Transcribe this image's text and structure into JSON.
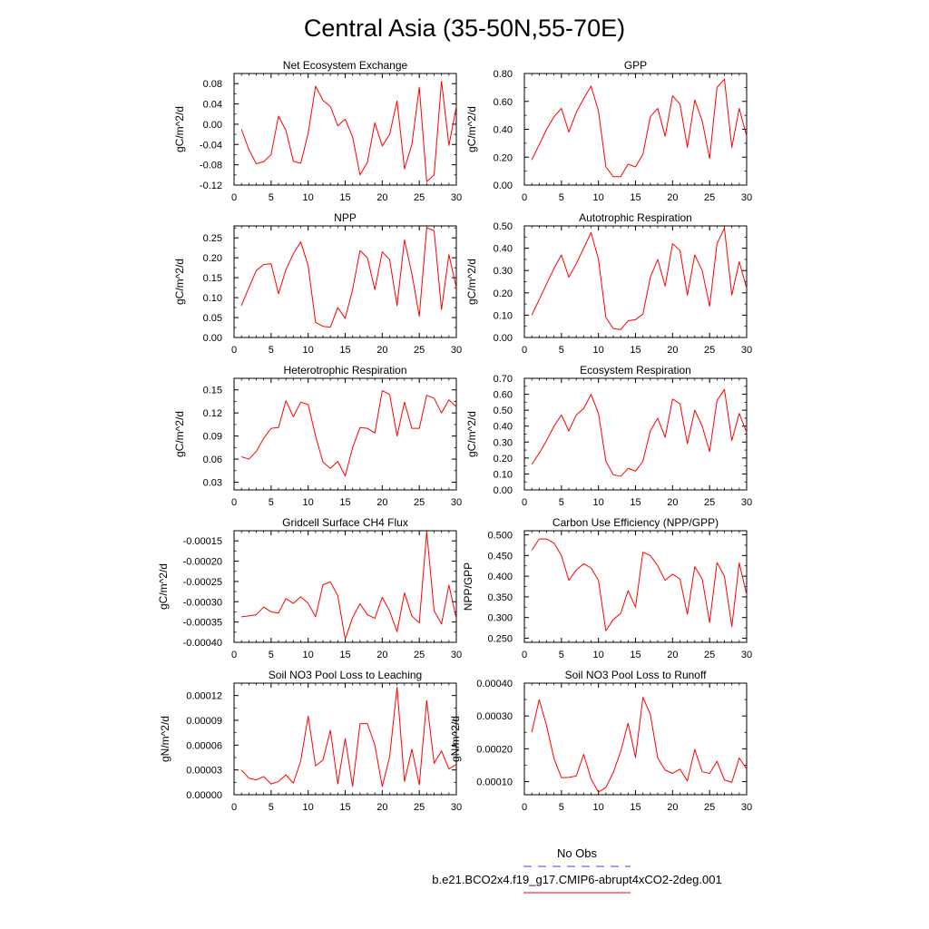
{
  "title": "Central Asia (35-50N,55-70E)",
  "x": [
    1,
    2,
    3,
    4,
    5,
    6,
    7,
    8,
    9,
    10,
    11,
    12,
    13,
    14,
    15,
    16,
    17,
    18,
    19,
    20,
    21,
    22,
    23,
    24,
    25,
    26,
    27,
    28,
    29,
    30
  ],
  "xticks": [
    "0",
    "5",
    "10",
    "15",
    "20",
    "25",
    "30"
  ],
  "legend": {
    "obs_label": "No Obs",
    "obs_color": "#4444cc",
    "case_label": "b.e21.BCO2x4.f19_g17.CMIP6-abrupt4xCO2-2deg.001",
    "case_color": "#ff0000"
  },
  "chart_data": [
    {
      "type": "line",
      "title": "Net Ecosystem Exchange",
      "ylabel": "gC/m^2/d",
      "xlim": [
        0,
        30
      ],
      "ylim": [
        -0.12,
        0.1
      ],
      "yticks": [
        -0.12,
        -0.08,
        -0.04,
        0.0,
        0.04,
        0.08
      ],
      "ytick_labels": [
        "-0.12",
        "-0.08",
        "-0.04",
        "0.00",
        "0.04",
        "0.08"
      ],
      "series": [
        {
          "color": "#ff0000",
          "values": [
            -0.01,
            -0.05,
            -0.078,
            -0.074,
            -0.06,
            0.016,
            -0.012,
            -0.073,
            -0.077,
            -0.018,
            0.075,
            0.047,
            0.035,
            -0.003,
            0.01,
            -0.025,
            -0.1,
            -0.075,
            0.003,
            -0.043,
            -0.02,
            0.046,
            -0.088,
            -0.04,
            0.073,
            -0.113,
            -0.1,
            0.085,
            -0.042,
            0.035
          ]
        }
      ]
    },
    {
      "type": "line",
      "title": "GPP",
      "ylabel": "gC/m^2/d",
      "xlim": [
        0,
        30
      ],
      "ylim": [
        0.0,
        0.8
      ],
      "yticks": [
        0.0,
        0.2,
        0.4,
        0.6,
        0.8
      ],
      "ytick_labels": [
        "0.00",
        "0.20",
        "0.40",
        "0.60",
        "0.80"
      ],
      "series": [
        {
          "color": "#ff0000",
          "values": [
            0.18,
            0.29,
            0.4,
            0.49,
            0.55,
            0.38,
            0.52,
            0.62,
            0.71,
            0.53,
            0.13,
            0.06,
            0.06,
            0.15,
            0.13,
            0.22,
            0.49,
            0.55,
            0.35,
            0.64,
            0.58,
            0.27,
            0.61,
            0.46,
            0.19,
            0.7,
            0.76,
            0.27,
            0.55,
            0.35
          ]
        }
      ]
    },
    {
      "type": "line",
      "title": "NPP",
      "ylabel": "gC/m^2/d",
      "xlim": [
        0,
        30
      ],
      "ylim": [
        0.0,
        0.28
      ],
      "yticks": [
        0.0,
        0.05,
        0.1,
        0.15,
        0.2,
        0.25
      ],
      "ytick_labels": [
        "0.00",
        "0.05",
        "0.10",
        "0.15",
        "0.20",
        "0.25"
      ],
      "series": [
        {
          "color": "#ff0000",
          "values": [
            0.08,
            0.125,
            0.168,
            0.183,
            0.185,
            0.11,
            0.17,
            0.21,
            0.24,
            0.18,
            0.038,
            0.028,
            0.026,
            0.075,
            0.048,
            0.12,
            0.218,
            0.2,
            0.12,
            0.215,
            0.195,
            0.08,
            0.245,
            0.16,
            0.053,
            0.275,
            0.268,
            0.07,
            0.208,
            0.125
          ]
        }
      ]
    },
    {
      "type": "line",
      "title": "Autotrophic Respiration",
      "ylabel": "gC/m^2/d",
      "xlim": [
        0,
        30
      ],
      "ylim": [
        0.0,
        0.5
      ],
      "yticks": [
        0.0,
        0.1,
        0.2,
        0.3,
        0.4,
        0.5
      ],
      "ytick_labels": [
        "0.00",
        "0.10",
        "0.20",
        "0.30",
        "0.40",
        "0.50"
      ],
      "series": [
        {
          "color": "#ff0000",
          "values": [
            0.1,
            0.17,
            0.24,
            0.31,
            0.37,
            0.27,
            0.33,
            0.4,
            0.47,
            0.35,
            0.09,
            0.04,
            0.035,
            0.075,
            0.08,
            0.105,
            0.27,
            0.35,
            0.23,
            0.42,
            0.39,
            0.19,
            0.37,
            0.3,
            0.14,
            0.42,
            0.49,
            0.19,
            0.34,
            0.22
          ]
        }
      ]
    },
    {
      "type": "line",
      "title": "Heterotrophic Respiration",
      "ylabel": "gC/m^2/d",
      "xlim": [
        0,
        30
      ],
      "ylim": [
        0.02,
        0.165
      ],
      "yticks": [
        0.03,
        0.06,
        0.09,
        0.12,
        0.15
      ],
      "ytick_labels": [
        "0.03",
        "0.06",
        "0.09",
        "0.12",
        "0.15"
      ],
      "series": [
        {
          "color": "#ff0000",
          "values": [
            0.063,
            0.06,
            0.07,
            0.087,
            0.1,
            0.101,
            0.136,
            0.115,
            0.134,
            0.131,
            0.09,
            0.056,
            0.048,
            0.057,
            0.038,
            0.075,
            0.101,
            0.1,
            0.094,
            0.149,
            0.144,
            0.09,
            0.134,
            0.1,
            0.1,
            0.143,
            0.139,
            0.12,
            0.137,
            0.128
          ]
        }
      ]
    },
    {
      "type": "line",
      "title": "Ecosystem Respiration",
      "ylabel": "gC/m^2/d",
      "xlim": [
        0,
        30
      ],
      "ylim": [
        0.0,
        0.7
      ],
      "yticks": [
        0.0,
        0.1,
        0.2,
        0.3,
        0.4,
        0.5,
        0.6,
        0.7
      ],
      "ytick_labels": [
        "0.00",
        "0.10",
        "0.20",
        "0.30",
        "0.40",
        "0.50",
        "0.60",
        "0.70"
      ],
      "series": [
        {
          "color": "#ff0000",
          "values": [
            0.16,
            0.23,
            0.31,
            0.4,
            0.47,
            0.37,
            0.47,
            0.51,
            0.6,
            0.48,
            0.18,
            0.095,
            0.085,
            0.135,
            0.118,
            0.18,
            0.37,
            0.45,
            0.33,
            0.57,
            0.54,
            0.29,
            0.5,
            0.4,
            0.24,
            0.56,
            0.63,
            0.31,
            0.48,
            0.36
          ]
        }
      ]
    },
    {
      "type": "line",
      "title": "Gridcell Surface CH4 Flux",
      "ylabel": "gC/m^2/d",
      "xlim": [
        0,
        30
      ],
      "ylim": [
        -0.0004,
        -0.000125
      ],
      "yticks": [
        -0.0004,
        -0.00035,
        -0.0003,
        -0.00025,
        -0.0002,
        -0.00015
      ],
      "ytick_labels": [
        "-0.00040",
        "-0.00035",
        "-0.00030",
        "-0.00025",
        "-0.00020",
        "-0.00015"
      ],
      "series": [
        {
          "color": "#ff0000",
          "values": [
            -0.000337,
            -0.000335,
            -0.000332,
            -0.000313,
            -0.000325,
            -0.000328,
            -0.000292,
            -0.000304,
            -0.000288,
            -0.000304,
            -0.000337,
            -0.000258,
            -0.000251,
            -0.000285,
            -0.000392,
            -0.000339,
            -0.000305,
            -0.000332,
            -0.000341,
            -0.000289,
            -0.000323,
            -0.000374,
            -0.000278,
            -0.000335,
            -0.000352,
            -0.000127,
            -0.000322,
            -0.000355,
            -0.000259,
            -0.000342
          ]
        }
      ]
    },
    {
      "type": "line",
      "title": "Carbon Use Efficiency (NPP/GPP)",
      "ylabel": "NPP/GPP",
      "xlim": [
        0,
        30
      ],
      "ylim": [
        0.24,
        0.51
      ],
      "yticks": [
        0.25,
        0.3,
        0.35,
        0.4,
        0.45,
        0.5
      ],
      "ytick_labels": [
        "0.250",
        "0.300",
        "0.350",
        "0.400",
        "0.450",
        "0.500"
      ],
      "series": [
        {
          "color": "#ff0000",
          "values": [
            0.463,
            0.49,
            0.49,
            0.48,
            0.45,
            0.39,
            0.415,
            0.43,
            0.42,
            0.39,
            0.268,
            0.295,
            0.31,
            0.365,
            0.325,
            0.458,
            0.45,
            0.425,
            0.39,
            0.405,
            0.393,
            0.308,
            0.423,
            0.393,
            0.288,
            0.433,
            0.4,
            0.278,
            0.432,
            0.355
          ]
        }
      ]
    },
    {
      "type": "line",
      "title": "Soil NO3 Pool Loss to Leaching",
      "ylabel": "gN/m^2/d",
      "xlim": [
        0,
        30
      ],
      "ylim": [
        0.0,
        0.000135
      ],
      "yticks": [
        0.0,
        3e-05,
        6e-05,
        9e-05,
        0.00012
      ],
      "ytick_labels": [
        "0.00000",
        "0.00003",
        "0.00006",
        "0.00009",
        "0.00012"
      ],
      "series": [
        {
          "color": "#ff0000",
          "values": [
            3e-05,
            2e-05,
            1.8e-05,
            2.2e-05,
            1.3e-05,
            1.6e-05,
            2.4e-05,
            1.4e-05,
            4.1e-05,
            9.5e-05,
            3.5e-05,
            4.2e-05,
            7.8e-05,
            1.3e-05,
            6.8e-05,
            1e-05,
            8.6e-05,
            8.6e-05,
            6e-05,
            1e-05,
            4.6e-05,
            0.00013,
            1.6e-05,
            5.5e-05,
            1.2e-05,
            0.000114,
            3.8e-05,
            5.3e-05,
            3.1e-05,
            3.7e-05
          ]
        }
      ]
    },
    {
      "type": "line",
      "title": "Soil NO3 Pool Loss to Runoff",
      "ylabel": "gN/m^2/d",
      "xlim": [
        0,
        30
      ],
      "ylim": [
        6e-05,
        0.0004
      ],
      "yticks": [
        0.0001,
        0.0002,
        0.0003,
        0.0004
      ],
      "ytick_labels": [
        "0.00010",
        "0.00020",
        "0.00030",
        "0.00040"
      ],
      "series": [
        {
          "color": "#ff0000",
          "values": [
            0.00025,
            0.00035,
            0.00027,
            0.00017,
            0.000112,
            0.000113,
            0.000117,
            0.000183,
            0.000108,
            6.8e-05,
            8.2e-05,
            0.000128,
            0.000192,
            0.000278,
            0.000173,
            0.000357,
            0.000305,
            0.000172,
            0.000135,
            0.000125,
            0.000138,
            0.000102,
            0.000198,
            0.00013,
            0.000125,
            0.000162,
            0.000105,
            9.8e-05,
            0.000172,
            0.000138
          ]
        }
      ]
    }
  ]
}
